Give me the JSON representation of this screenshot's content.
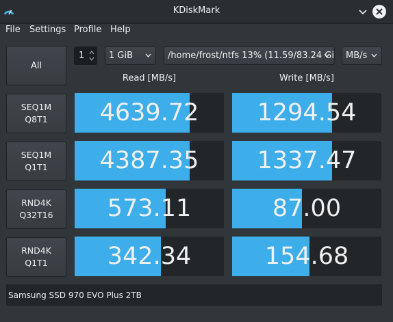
{
  "window": {
    "title": "KDiskMark"
  },
  "menu": [
    "File",
    "Settings",
    "Profile",
    "Help"
  ],
  "controls": {
    "all_label": "All",
    "count": "1",
    "size": "1 GiB",
    "path": "/home/frost/ntfs 13% (11.59/83.24 Gi",
    "unit": "MB/s"
  },
  "headers": {
    "read": "Read [MB/s]",
    "write": "Write [MB/s]"
  },
  "tests": [
    {
      "line1": "SEQ1M",
      "line2": "Q8T1",
      "read": "4639.72",
      "write": "1294.54",
      "read_fill": 0.77,
      "write_fill": 0.67
    },
    {
      "line1": "SEQ1M",
      "line2": "Q1T1",
      "read": "4387.35",
      "write": "1337.47",
      "read_fill": 0.77,
      "write_fill": 0.67
    },
    {
      "line1": "RND4K",
      "line2": "Q32T16",
      "read": "573.11",
      "write": "87.00",
      "read_fill": 0.61,
      "write_fill": 0.47
    },
    {
      "line1": "RND4K",
      "line2": "Q1T1",
      "read": "342.34",
      "write": "154.68",
      "read_fill": 0.58,
      "write_fill": 0.52
    }
  ],
  "device": "Samsung SSD 970 EVO Plus 2TB",
  "colors": {
    "accent": "#3daee9",
    "background": "#31363b",
    "bar_track": "#232629"
  }
}
